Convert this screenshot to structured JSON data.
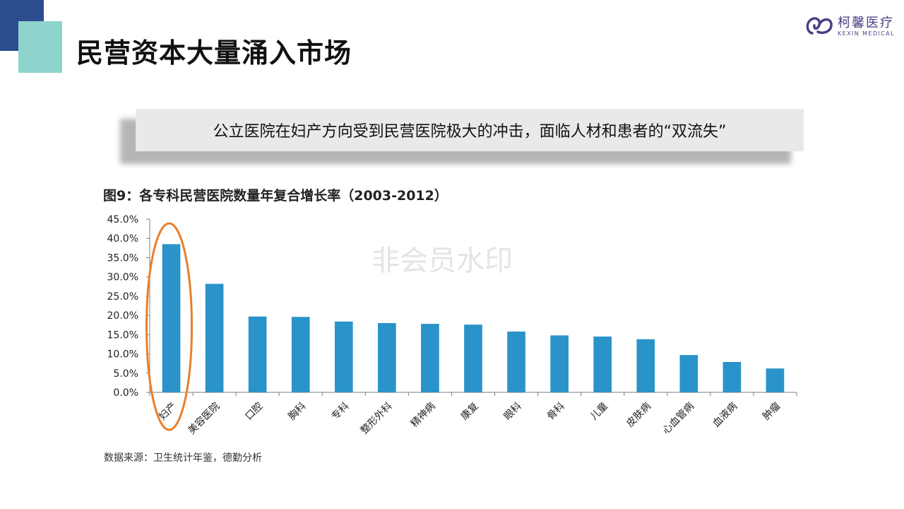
{
  "slide": {
    "title": "民营资本大量涌入市场",
    "callout": "公立医院在妇产方向受到民营医院极大的冲击，面临人材和患者的“双流失”",
    "watermark": "非会员水印"
  },
  "logo": {
    "cn": "柯馨医疗",
    "en": "KEXIN MEDICAL",
    "color": "#4b3f86"
  },
  "colors": {
    "navy": "#2b4c8f",
    "teal": "#8fd3cd",
    "bar": "#2a93c9",
    "highlight": "#e87f2c"
  },
  "chart_data": {
    "type": "bar",
    "title": "图9：各专科民营医院数量年复合增长率（2003-2012）",
    "categories": [
      "妇产",
      "美容医院",
      "口腔",
      "胸科",
      "专科",
      "整形外科",
      "精神病",
      "康复",
      "眼科",
      "骨科",
      "儿童",
      "皮肤病",
      "心血管病",
      "血液病",
      "肿瘤"
    ],
    "values": [
      38.5,
      28.2,
      19.7,
      19.6,
      18.4,
      18.0,
      17.8,
      17.6,
      15.8,
      14.8,
      14.5,
      13.8,
      9.7,
      7.9,
      6.2
    ],
    "ylim": [
      0,
      45
    ],
    "yticks": [
      "0.0%",
      "5.0%",
      "10.0%",
      "15.0%",
      "20.0%",
      "25.0%",
      "30.0%",
      "35.0%",
      "40.0%",
      "45.0%"
    ],
    "highlighted_category": "妇产",
    "grid": false,
    "source": "数据来源：卫生统计年鉴，德勤分析"
  }
}
